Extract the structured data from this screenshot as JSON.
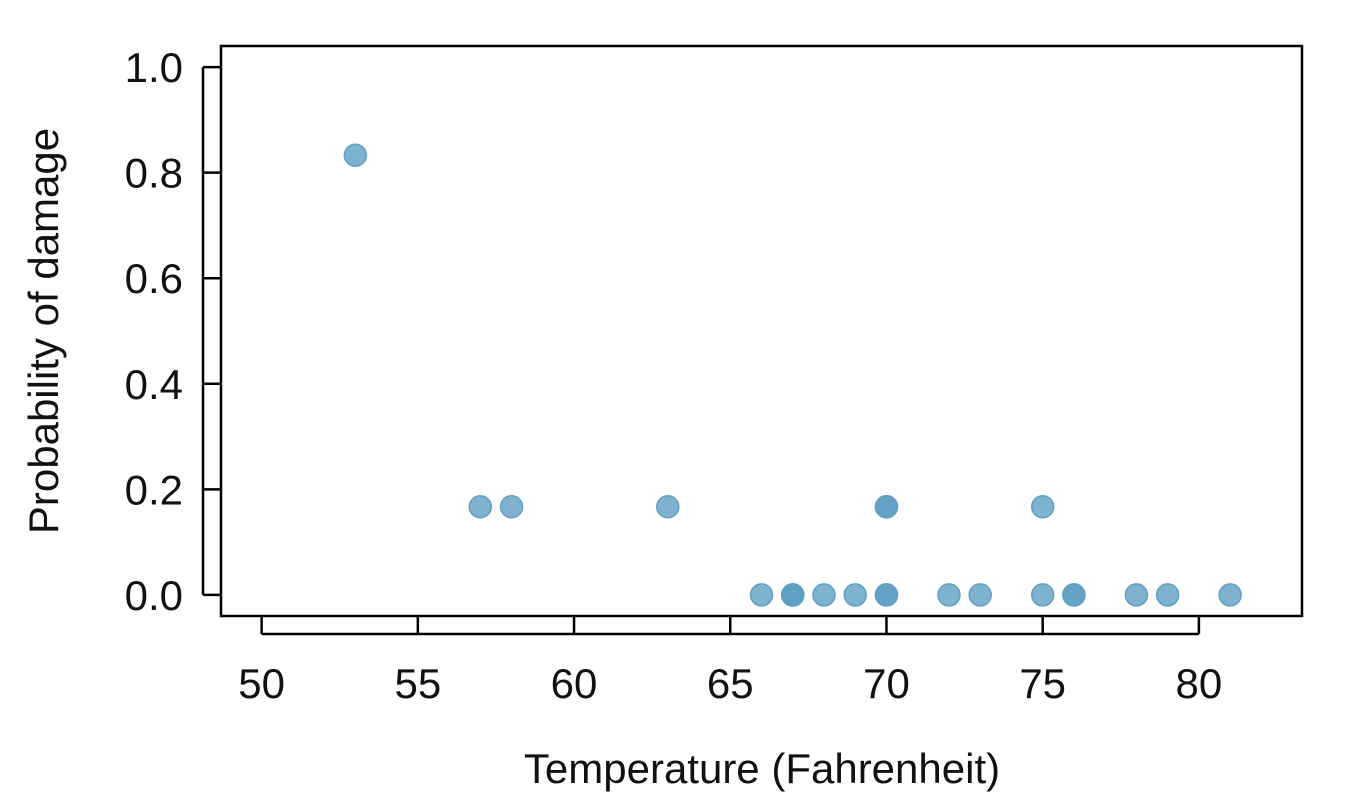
{
  "chart_data": {
    "type": "scatter",
    "title": "",
    "xlabel": "Temperature (Fahrenheit)",
    "ylabel": "Probability of damage",
    "xlim": [
      48.7,
      83.3
    ],
    "ylim": [
      -0.04,
      1.04
    ],
    "xticks": [
      50,
      55,
      60,
      65,
      70,
      75,
      80
    ],
    "yticks": [
      0.0,
      0.2,
      0.4,
      0.6,
      0.8,
      1.0
    ],
    "xtick_labels": [
      "50",
      "55",
      "60",
      "65",
      "70",
      "75",
      "80"
    ],
    "ytick_labels": [
      "0.0",
      "0.2",
      "0.4",
      "0.6",
      "0.8",
      "1.0"
    ],
    "grid": false,
    "legend": "none",
    "point_color": "#5f9fc3",
    "series": [
      {
        "x": [
          53,
          57,
          58,
          63,
          66,
          67,
          67,
          67,
          68,
          69,
          70,
          70,
          70,
          70,
          72,
          73,
          75,
          75,
          76,
          76,
          78,
          79,
          81
        ],
        "y": [
          0.833,
          0.167,
          0.167,
          0.167,
          0.0,
          0.0,
          0.0,
          0.0,
          0.0,
          0.0,
          0.167,
          0.0,
          0.167,
          0.0,
          0.0,
          0.0,
          0.0,
          0.167,
          0.0,
          0.0,
          0.0,
          0.0,
          0.0
        ]
      }
    ]
  }
}
